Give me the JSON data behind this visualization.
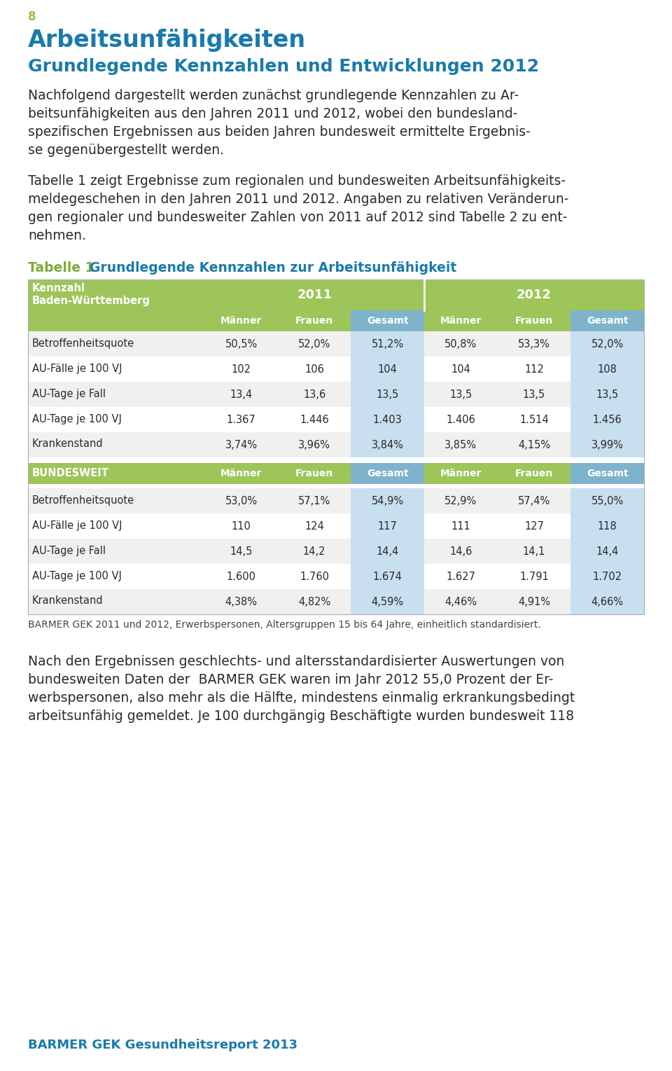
{
  "page_number": "8",
  "page_number_color": "#8dc63f",
  "heading1": "Arbeitsunfähigkeiten",
  "heading1_color": "#1a7aac",
  "heading2": "Grundlegende Kennzahlen und Entwicklungen 2012",
  "heading2_color": "#1a7aac",
  "intro_text_lines": [
    "Nachfolgend dargestellt werden zunächst grundlegende Kennzahlen zu Ar-",
    "beitsunfähigkeiten aus den Jahren 2011 und 2012, wobei den bundesland-",
    "spezifischen Ergebnissen aus beiden Jahren bundesweit ermittelte Ergebnis-",
    "se gegenübergestellt werden."
  ],
  "body_text1_lines": [
    "Tabelle 1 zeigt Ergebnisse zum regionalen und bundesweiten Arbeitsunfähigkeits-",
    "meldegeschehen in den Jahren 2011 und 2012. Angaben zu relativen Veränderun-",
    "gen regionaler und bundesweiter Zahlen von 2011 auf 2012 sind Tabelle 2 zu ent-",
    "nehmen."
  ],
  "table_label": "Tabelle 1",
  "table_title": "Grundlegende Kennzahlen zur Arbeitsunfähigkeit",
  "table_label_color": "#7aac3a",
  "table_title_color": "#1a7aac",
  "green_bg": "#9dc55a",
  "gesamt_header_bg": "#7fb3cc",
  "gesamt_data_bg": "#c8dff0",
  "row_bg_odd": "#f0f0ee",
  "row_bg_even": "#ffffff",
  "white": "#ffffff",
  "bw_rows": [
    [
      "Betroffenheitsquote",
      "50,5%",
      "52,0%",
      "51,2%",
      "50,8%",
      "53,3%",
      "52,0%"
    ],
    [
      "AU-Fälle je 100 VJ",
      "102",
      "106",
      "104",
      "104",
      "112",
      "108"
    ],
    [
      "AU-Tage je Fall",
      "13,4",
      "13,6",
      "13,5",
      "13,5",
      "13,5",
      "13,5"
    ],
    [
      "AU-Tage je 100 VJ",
      "1.367",
      "1.446",
      "1.403",
      "1.406",
      "1.514",
      "1.456"
    ],
    [
      "Krankenstand",
      "3,74%",
      "3,96%",
      "3,84%",
      "3,85%",
      "4,15%",
      "3,99%"
    ]
  ],
  "bundesweit_rows": [
    [
      "Betroffenheitsquote",
      "53,0%",
      "57,1%",
      "54,9%",
      "52,9%",
      "57,4%",
      "55,0%"
    ],
    [
      "AU-Fälle je 100 VJ",
      "110",
      "124",
      "117",
      "111",
      "127",
      "118"
    ],
    [
      "AU-Tage je Fall",
      "14,5",
      "14,2",
      "14,4",
      "14,6",
      "14,1",
      "14,4"
    ],
    [
      "AU-Tage je 100 VJ",
      "1.600",
      "1.760",
      "1.674",
      "1.627",
      "1.791",
      "1.702"
    ],
    [
      "Krankenstand",
      "4,38%",
      "4,82%",
      "4,59%",
      "4,46%",
      "4,91%",
      "4,66%"
    ]
  ],
  "footnote": "BARMER GEK 2011 und 2012, Erwerbspersonen, Altersgruppen 15 bis 64 Jahre, einheitlich standardisiert.",
  "body_text2_lines": [
    "Nach den Ergebnissen geschlechts- und altersstandardisierter Auswertungen von",
    "bundesweiten Daten der  BARMER GEK waren im Jahr 2012 55,0 Prozent der Er-",
    "werbspersonen, also mehr als die Hälfte, mindestens einmalig erkrankungsbedingt",
    "arbeitsunfähig gemeldet. Je 100 durchgängig Beschäftigte wurden bundesweit 118"
  ],
  "footer": "BARMER GEK Gesundheitsreport 2013",
  "footer_color": "#1a7aac",
  "bg_color": "#ffffff",
  "text_color": "#2a2a2a"
}
